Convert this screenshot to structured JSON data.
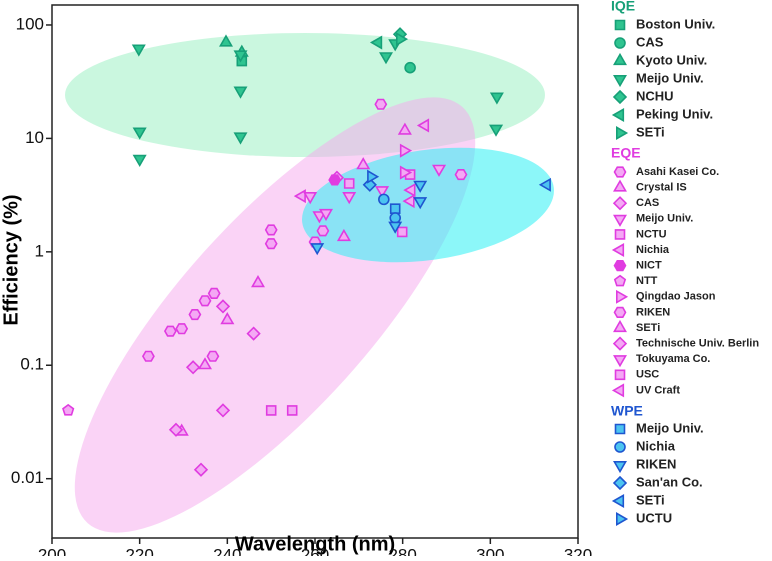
{
  "chart_data": {
    "type": "scatter",
    "xlabel": "Wavelength (nm)",
    "ylabel": "Efficiency (%)",
    "log_y": true,
    "xlim": [
      200,
      320
    ],
    "xticks": [
      200,
      220,
      240,
      260,
      280,
      300,
      320
    ],
    "ylim": [
      0.003,
      150
    ],
    "yticks": [
      0.01,
      0.1,
      1,
      10,
      100
    ],
    "groups": [
      {
        "name": "IQE",
        "color": "#17a078",
        "fill": "#2fc490",
        "series": [
          {
            "name": "Boston Univ.",
            "marker": "square",
            "x": [
              243.3
            ],
            "values": [
              48
            ]
          },
          {
            "name": "CAS",
            "marker": "circle",
            "x": [
              281.7
            ],
            "values": [
              42
            ]
          },
          {
            "name": "Kyoto Univ.",
            "marker": "tri-up",
            "x": [
              239.7,
              243.3
            ],
            "values": [
              70,
              57
            ]
          },
          {
            "name": "Meijo Univ.",
            "marker": "tri-down",
            "x": [
              219.8,
              220,
              220,
              243,
              243,
              243,
              276.2,
              301.5,
              301.3,
              278.3
            ],
            "values": [
              62,
              11.5,
              6.6,
              55,
              26.4,
              10.4,
              53,
              23.4,
              12.2,
              69
            ]
          },
          {
            "name": "NCHU",
            "marker": "diamond",
            "x": [
              279.4
            ],
            "values": [
              83
            ]
          },
          {
            "name": "Peking Univ.",
            "marker": "tri-left",
            "x": [
              274.4
            ],
            "values": [
              70
            ]
          },
          {
            "name": "SETi",
            "marker": "tri-right",
            "x": [
              279.4
            ],
            "values": [
              75
            ]
          }
        ]
      },
      {
        "name": "EQE",
        "color": "#e03ce0",
        "fill": "#f4a8f4",
        "series": [
          {
            "name": "Asahi Kasei Co.",
            "marker": "hexagon",
            "x": [
              293.3
            ],
            "values": [
              4.8
            ]
          },
          {
            "name": "Crystal IS",
            "marker": "tri-up",
            "x": [
              271,
              266.6,
              280.5
            ],
            "values": [
              5.8,
              1.35,
              11.7
            ]
          },
          {
            "name": "CAS",
            "marker": "diamond",
            "x": [
              265
            ],
            "values": [
              4.5
            ]
          },
          {
            "name": "Meijo Univ.",
            "marker": "tri-down",
            "x": [
              261,
              267.8,
              275.3,
              288.3
            ],
            "values": [
              2.1,
              3.1,
              3.5,
              5.4
            ]
          },
          {
            "name": "NCTU",
            "marker": "square",
            "x": [
              250,
              254.8,
              267.8,
              281.7
            ],
            "values": [
              0.04,
              0.04,
              4,
              4.8
            ]
          },
          {
            "name": "Nichia",
            "marker": "tri-left",
            "x": [
              257,
              285.1,
              282
            ],
            "values": [
              3.1,
              13,
              3.5
            ]
          },
          {
            "name": "NICT",
            "marker": "hexagon-solid",
            "x": [
              264.5
            ],
            "values": [
              4.3
            ]
          },
          {
            "name": "NTT",
            "marker": "pentagon",
            "x": [
              203.7
            ],
            "values": [
              0.04
            ]
          },
          {
            "name": "Qingdao Jason",
            "marker": "tri-right",
            "x": [
              280.3,
              280.3
            ],
            "values": [
              7.8,
              5
            ]
          },
          {
            "name": "RIKEN",
            "marker": "hexagon",
            "x": [
              275,
              250,
              250,
              261.8,
              260,
              222,
              229.6,
              227,
              237,
              234.9,
              232.6,
              236.7
            ],
            "values": [
              20,
              1.56,
              1.18,
              1.53,
              1.22,
              0.12,
              0.21,
              0.2,
              0.43,
              0.37,
              0.28,
              0.12
            ]
          },
          {
            "name": "SETi",
            "marker": "tri-up",
            "x": [
              247,
              240,
              234.9,
              229.6
            ],
            "values": [
              0.53,
              0.25,
              0.1,
              0.026
            ]
          },
          {
            "name": "Technische Univ. Berlin",
            "marker": "diamond",
            "x": [
              239,
              246,
              232.2,
              239,
              234,
              228.3
            ],
            "values": [
              0.33,
              0.19,
              0.096,
              0.04,
              0.012,
              0.027
            ]
          },
          {
            "name": "Tokuyama Co.",
            "marker": "tri-down",
            "x": [
              262.5,
              258.9
            ],
            "values": [
              2.2,
              3.1
            ]
          },
          {
            "name": "USC",
            "marker": "square",
            "x": [
              279.9
            ],
            "values": [
              1.5
            ]
          },
          {
            "name": "UV Craft",
            "marker": "tri-left",
            "x": [
              281.8
            ],
            "values": [
              2.8
            ]
          }
        ]
      },
      {
        "name": "WPE",
        "color": "#1f56d0",
        "fill": "#4cc4f0",
        "series": [
          {
            "name": "Meijo Univ.",
            "marker": "square",
            "x": [
              278.3
            ],
            "values": [
              2.4
            ]
          },
          {
            "name": "Nichia",
            "marker": "circle",
            "x": [
              275.7,
              278.3
            ],
            "values": [
              2.9,
              1.99
            ]
          },
          {
            "name": "RIKEN",
            "marker": "tri-down",
            "x": [
              278.3,
              260.5,
              284,
              284
            ],
            "values": [
              1.7,
              1.1,
              3.9,
              2.8
            ]
          },
          {
            "name": "San'an Co.",
            "marker": "diamond",
            "x": [
              272.5
            ],
            "values": [
              3.9
            ]
          },
          {
            "name": "SETi",
            "marker": "tri-left",
            "x": [
              312.9
            ],
            "values": [
              3.9
            ]
          },
          {
            "name": "UCTU",
            "marker": "tri-right",
            "x": [
              272.8
            ],
            "values": [
              4.6
            ]
          }
        ]
      }
    ]
  }
}
